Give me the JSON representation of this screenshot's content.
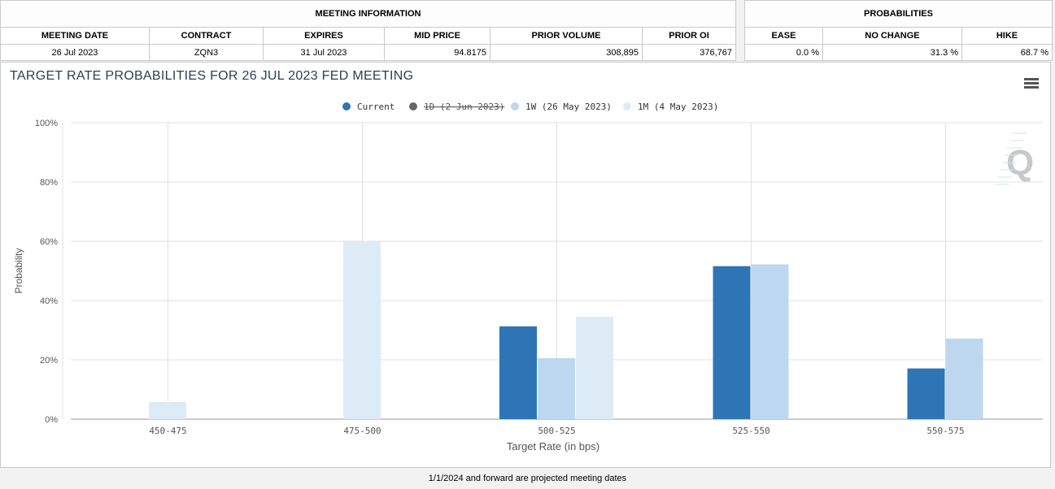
{
  "meeting_info": {
    "header": "MEETING INFORMATION",
    "columns": [
      "MEETING DATE",
      "CONTRACT",
      "EXPIRES",
      "MID PRICE",
      "PRIOR VOLUME",
      "PRIOR OI"
    ],
    "row": [
      "26 Jul 2023",
      "ZQN3",
      "31 Jul 2023",
      "94.8175",
      "308,895",
      "376,767"
    ]
  },
  "probabilities": {
    "header": "PROBABILITIES",
    "columns": [
      "EASE",
      "NO CHANGE",
      "HIKE"
    ],
    "row": [
      "0.0 %",
      "31.3 %",
      "68.7 %"
    ]
  },
  "chart_data": {
    "type": "bar",
    "title": "TARGET RATE PROBABILITIES FOR 26 JUL 2023 FED MEETING",
    "xlabel": "Target Rate (in bps)",
    "ylabel": "Probability",
    "categories": [
      "450-475",
      "475-500",
      "500-525",
      "525-550",
      "550-575"
    ],
    "ylim": [
      0,
      100
    ],
    "yticks": [
      "0%",
      "20%",
      "40%",
      "60%",
      "80%",
      "100%"
    ],
    "legend_position": "top-center",
    "grid": true,
    "series": [
      {
        "name": "Current",
        "color": "#2e75b6",
        "hidden": false,
        "values": [
          0,
          0,
          31.3,
          51.6,
          17.1
        ]
      },
      {
        "name": "1D (2 Jun 2023)",
        "color": "#666666",
        "hidden": true,
        "values": [
          0,
          0,
          0,
          0,
          0
        ]
      },
      {
        "name": "1W (26 May 2023)",
        "color": "#bdd7ee",
        "hidden": false,
        "values": [
          0,
          0,
          20.6,
          52.2,
          27.2
        ]
      },
      {
        "name": "1M (4 May 2023)",
        "color": "#ddebf7",
        "hidden": false,
        "values": [
          5.8,
          60.0,
          34.5,
          0,
          0
        ]
      }
    ]
  },
  "footer": "1/1/2024 and forward are projected meeting dates",
  "icons": {
    "menu": "hamburger-menu-icon",
    "watermark": "Q"
  }
}
